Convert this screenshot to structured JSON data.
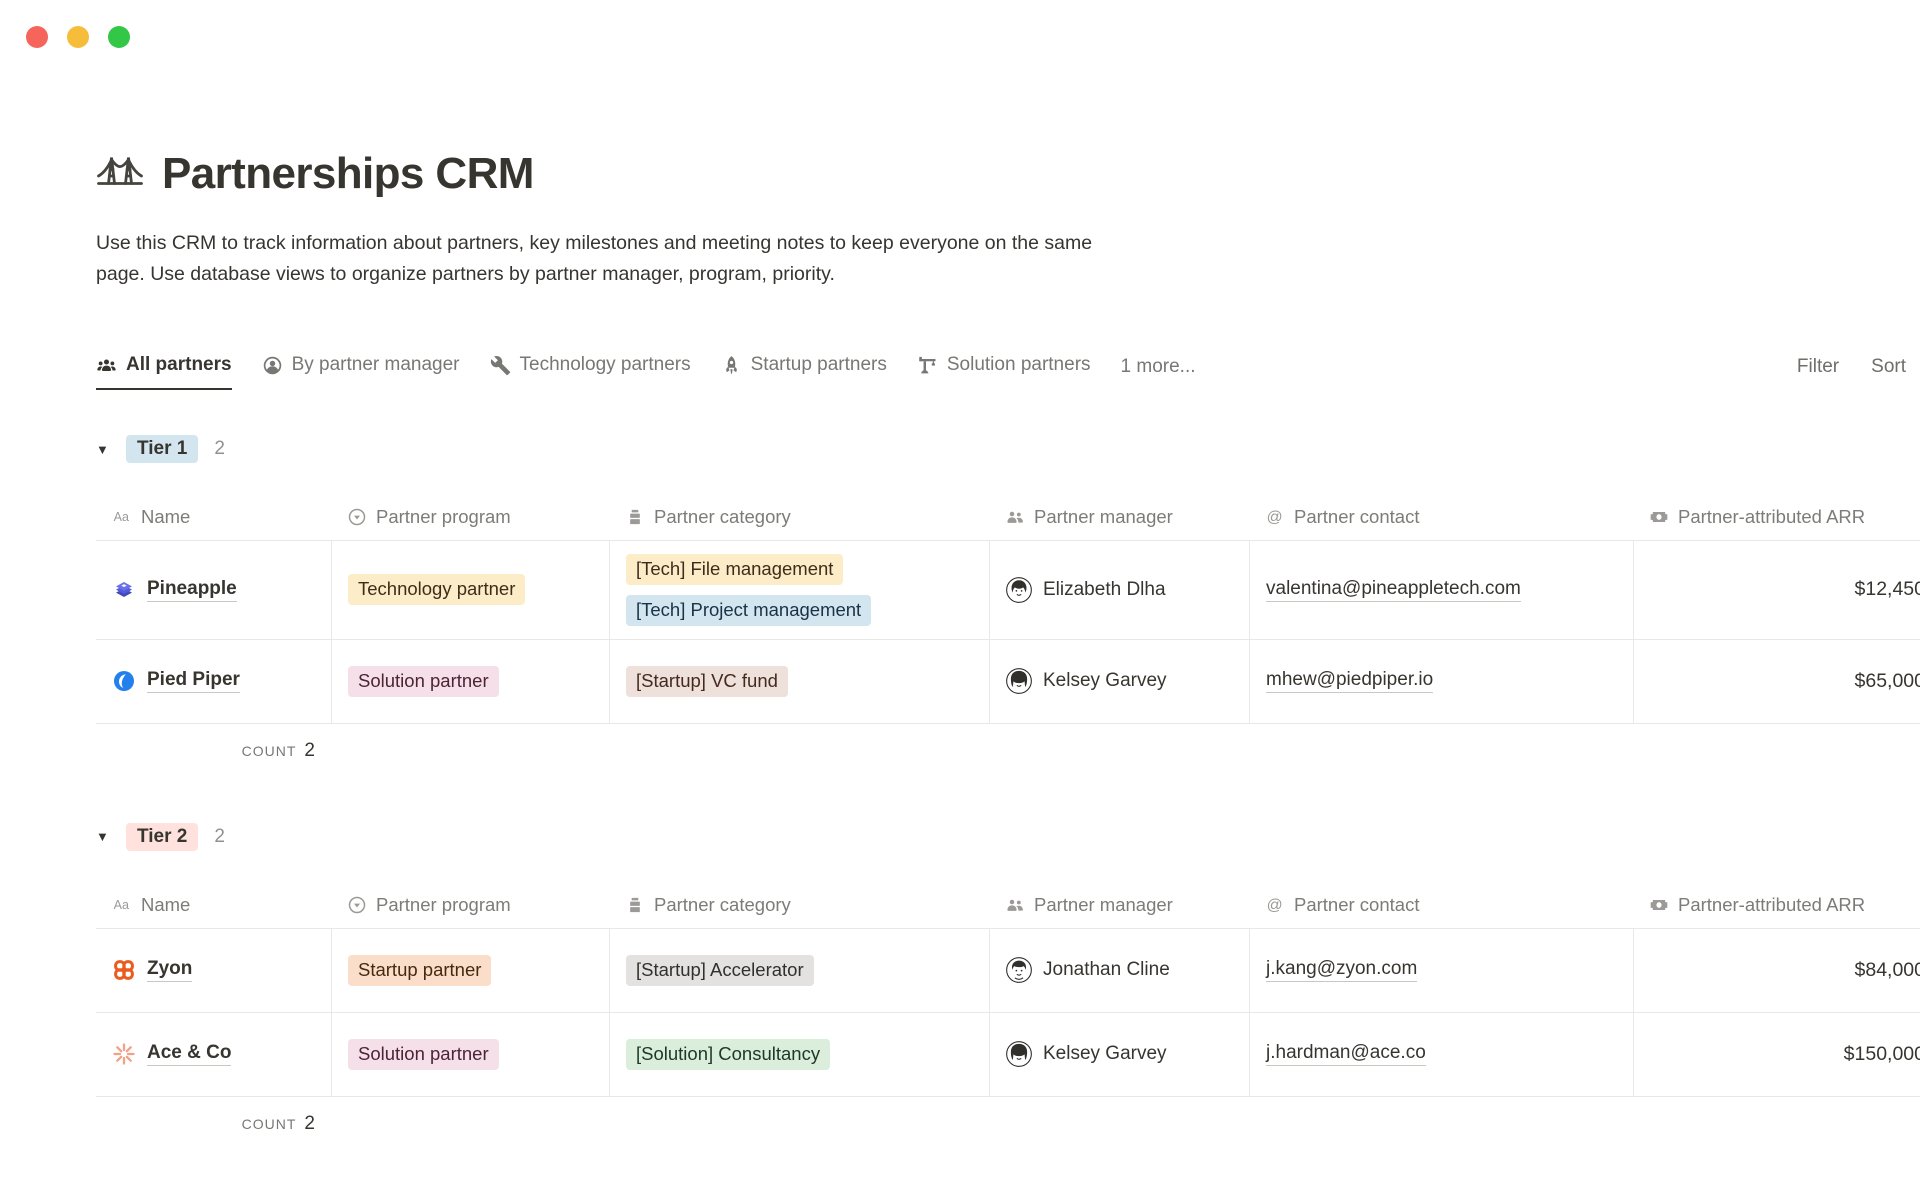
{
  "window": {
    "traffic_lights": [
      {
        "name": "close-button",
        "color": "#F5655B"
      },
      {
        "name": "minimize-button",
        "color": "#F6BD3B"
      },
      {
        "name": "zoom-button",
        "color": "#33C748"
      }
    ]
  },
  "page": {
    "icon": "bridge-icon",
    "title": "Partnerships CRM",
    "description_lines": [
      "Use this CRM to track information about partners, key milestones and meeting notes to keep everyone on the same",
      "page. Use database views to organize partners by partner manager, program, priority."
    ]
  },
  "tabbar": {
    "tabs": [
      {
        "label": "All partners",
        "icon": "people-group-icon",
        "active": true
      },
      {
        "label": "By partner manager",
        "icon": "person-circle-icon",
        "active": false
      },
      {
        "label": "Technology partners",
        "icon": "wrench-icon",
        "active": false
      },
      {
        "label": "Startup partners",
        "icon": "rocket-icon",
        "active": false
      },
      {
        "label": "Solution partners",
        "icon": "crane-icon",
        "active": false
      }
    ],
    "more_label": "1 more...",
    "filter_label": "Filter",
    "sort_label": "Sort"
  },
  "columns": [
    {
      "icon": "text-icon",
      "label": "Name"
    },
    {
      "icon": "select-icon",
      "label": "Partner program"
    },
    {
      "icon": "multi-select-icon",
      "label": "Partner category"
    },
    {
      "icon": "people-icon",
      "label": "Partner manager"
    },
    {
      "icon": "at-icon",
      "label": "Partner contact"
    },
    {
      "icon": "banknote-icon",
      "label": "Partner-attributed ARR"
    }
  ],
  "groups": [
    {
      "name": "Tier 1",
      "count": "2",
      "badge_bg": "#D3E5EF",
      "badge_color": "#37352F",
      "toggle_icon": "triangle-down-icon",
      "count_label": "COUNT",
      "count_value": "2",
      "rows": [
        {
          "name": "Pineapple",
          "logo": "pineapple-logo",
          "program": {
            "label": "Technology partner",
            "bg": "#FDECC8",
            "color": "#402C1B"
          },
          "categories": [
            {
              "label": "[Tech] File management",
              "bg": "#FDECC8",
              "color": "#402C1B"
            },
            {
              "label": "[Tech] Project management",
              "bg": "#D3E5EF",
              "color": "#183347"
            }
          ],
          "manager": {
            "name": "Elizabeth Dlha",
            "avatar": "avatar-elizabeth"
          },
          "contact": "valentina@pineappletech.com",
          "arr": "$12,450"
        },
        {
          "name": "Pied Piper",
          "logo": "piedpiper-logo",
          "program": {
            "label": "Solution partner",
            "bg": "#F5E0E9",
            "color": "#4C2337"
          },
          "categories": [
            {
              "label": "[Startup] VC fund",
              "bg": "#EEE0DA",
              "color": "#442A1E"
            }
          ],
          "manager": {
            "name": "Kelsey Garvey",
            "avatar": "avatar-kelsey"
          },
          "contact": "mhew@piedpiper.io",
          "arr": "$65,000"
        }
      ]
    },
    {
      "name": "Tier 2",
      "count": "2",
      "badge_bg": "#FFE2DD",
      "badge_color": "#37352F",
      "toggle_icon": "triangle-down-icon",
      "count_label": "COUNT",
      "count_value": "2",
      "rows": [
        {
          "name": "Zyon",
          "logo": "zyon-logo",
          "program": {
            "label": "Startup partner",
            "bg": "#FADEC9",
            "color": "#49290E"
          },
          "categories": [
            {
              "label": "[Startup] Accelerator",
              "bg": "#E3E2E0",
              "color": "#32302C"
            }
          ],
          "manager": {
            "name": "Jonathan Cline",
            "avatar": "avatar-jonathan"
          },
          "contact": "j.kang@zyon.com",
          "arr": "$84,000"
        },
        {
          "name": "Ace & Co",
          "logo": "ace-logo",
          "program": {
            "label": "Solution partner",
            "bg": "#F5E0E9",
            "color": "#4C2337"
          },
          "categories": [
            {
              "label": "[Solution] Consultancy",
              "bg": "#DBEDDB",
              "color": "#1C3829"
            }
          ],
          "manager": {
            "name": "Kelsey Garvey",
            "avatar": "avatar-kelsey"
          },
          "contact": "j.hardman@ace.co",
          "arr": "$150,000"
        }
      ]
    }
  ]
}
